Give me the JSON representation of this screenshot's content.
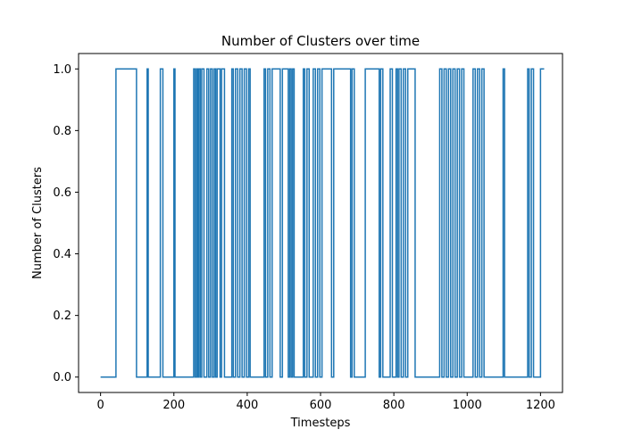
{
  "chart_data": {
    "type": "line",
    "title": "Number of Clusters over time",
    "xlabel": "Timesteps",
    "ylabel": "Number of Clusters",
    "xlim": [
      -60,
      1260
    ],
    "ylim": [
      -0.05,
      1.05
    ],
    "xticks": [
      0,
      200,
      400,
      600,
      800,
      1000,
      1200
    ],
    "xtick_labels": [
      "0",
      "200",
      "400",
      "600",
      "800",
      "1000",
      "1200"
    ],
    "yticks": [
      0.0,
      0.2,
      0.4,
      0.6,
      0.8,
      1.0
    ],
    "ytick_labels": [
      "0.0",
      "0.2",
      "0.4",
      "0.6",
      "0.8",
      "1.0"
    ],
    "grid": false,
    "color": "#1f77b4",
    "series": [
      {
        "step": true,
        "x": [
          0,
          42,
          98,
          127,
          130,
          163,
          170,
          200,
          203,
          254,
          258,
          262,
          265,
          268,
          272,
          276,
          282,
          290,
          295,
          300,
          305,
          310,
          314,
          318,
          326,
          330,
          338,
          358,
          362,
          368,
          374,
          380,
          386,
          392,
          398,
          404,
          408,
          446,
          450,
          456,
          462,
          468,
          490,
          496,
          512,
          516,
          520,
          524,
          528,
          553,
          557,
          563,
          569,
          580,
          586,
          592,
          598,
          604,
          630,
          636,
          682,
          686,
          692,
          722,
          760,
          764,
          770,
          790,
          796,
          806,
          810,
          814,
          820,
          826,
          832,
          838,
          858,
          925,
          931,
          937,
          943,
          949,
          955,
          961,
          967,
          973,
          979,
          985,
          991,
          1016,
          1022,
          1028,
          1034,
          1040,
          1046,
          1098,
          1102,
          1165,
          1169,
          1175,
          1181,
          1200,
          1210
        ],
        "y": [
          0,
          1,
          0,
          1,
          0,
          1,
          0,
          1,
          0,
          1,
          0,
          1,
          0,
          1,
          0,
          1,
          0,
          1,
          0,
          1,
          0,
          1,
          0,
          1,
          0,
          1,
          0,
          1,
          0,
          1,
          0,
          1,
          0,
          1,
          0,
          1,
          0,
          1,
          0,
          1,
          0,
          1,
          0,
          1,
          0,
          1,
          0,
          1,
          0,
          1,
          0,
          1,
          0,
          1,
          0,
          1,
          0,
          1,
          0,
          1,
          0,
          1,
          0,
          1,
          0,
          1,
          0,
          1,
          0,
          1,
          0,
          1,
          0,
          1,
          0,
          1,
          0,
          1,
          0,
          1,
          0,
          1,
          0,
          1,
          0,
          1,
          0,
          1,
          0,
          1,
          0,
          1,
          0,
          1,
          0,
          1,
          0,
          1,
          0,
          1,
          0,
          1,
          1
        ]
      }
    ]
  }
}
